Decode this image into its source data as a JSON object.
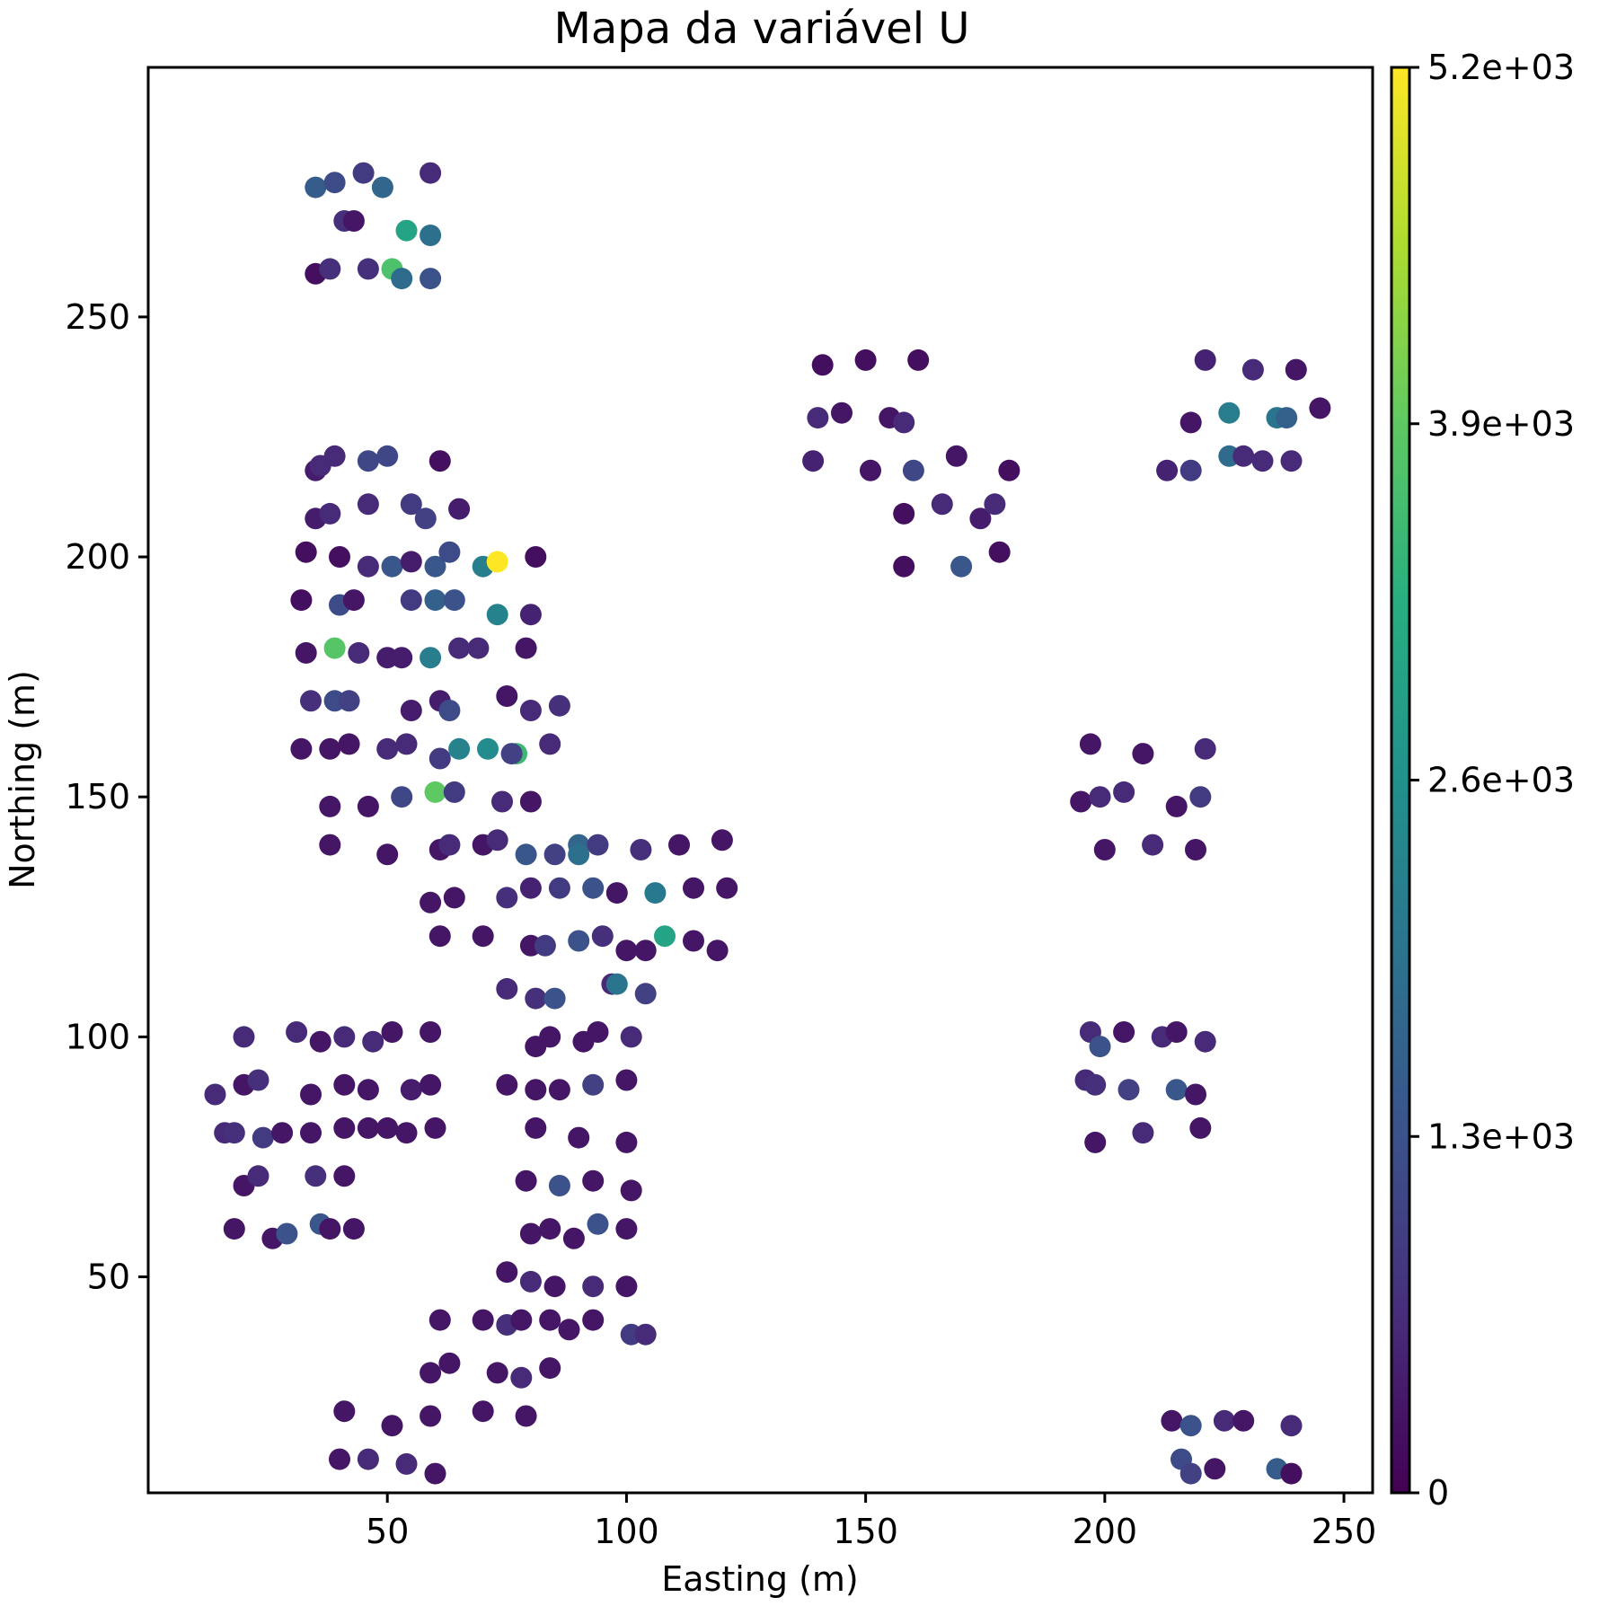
{
  "chart_data": {
    "type": "scatter",
    "title": "Mapa da variável U",
    "xlabel": "Easting (m)",
    "ylabel": "Northing (m)",
    "xlim": [
      0,
      256
    ],
    "ylim": [
      5,
      302
    ],
    "xticks": [
      50,
      100,
      150,
      200,
      250
    ],
    "yticks": [
      50,
      100,
      150,
      200,
      250
    ],
    "grid": false,
    "colorbar": {
      "colormap": "viridis",
      "range": [
        0,
        5200
      ],
      "ticks": [
        0,
        1300,
        2600,
        3900,
        5200
      ],
      "tick_labels": [
        "0",
        "1.3e+03",
        "2.6e+03",
        "3.9e+03",
        "5.2e+03"
      ]
    },
    "points": [
      [
        35,
        277,
        1500
      ],
      [
        39,
        278,
        1200
      ],
      [
        45,
        280,
        900
      ],
      [
        49,
        277,
        1700
      ],
      [
        59,
        280,
        600
      ],
      [
        41,
        270,
        700
      ],
      [
        43,
        270,
        300
      ],
      [
        54,
        268,
        3000
      ],
      [
        59,
        267,
        1900
      ],
      [
        35,
        259,
        200
      ],
      [
        38,
        260,
        700
      ],
      [
        46,
        260,
        700
      ],
      [
        51,
        260,
        3700
      ],
      [
        53,
        258,
        1800
      ],
      [
        59,
        258,
        1300
      ],
      [
        141,
        240,
        200
      ],
      [
        150,
        241,
        200
      ],
      [
        161,
        241,
        200
      ],
      [
        140,
        229,
        600
      ],
      [
        145,
        230,
        300
      ],
      [
        155,
        229,
        300
      ],
      [
        158,
        228,
        600
      ],
      [
        139,
        220,
        500
      ],
      [
        151,
        218,
        300
      ],
      [
        160,
        218,
        1100
      ],
      [
        169,
        221,
        300
      ],
      [
        180,
        218,
        200
      ],
      [
        158,
        209,
        200
      ],
      [
        166,
        211,
        600
      ],
      [
        174,
        208,
        400
      ],
      [
        177,
        211,
        600
      ],
      [
        158,
        198,
        200
      ],
      [
        170,
        198,
        1400
      ],
      [
        178,
        201,
        200
      ],
      [
        221,
        241,
        500
      ],
      [
        231,
        239,
        600
      ],
      [
        240,
        239,
        300
      ],
      [
        245,
        231,
        300
      ],
      [
        218,
        228,
        300
      ],
      [
        226,
        230,
        2200
      ],
      [
        236,
        229,
        2000
      ],
      [
        238,
        229,
        1600
      ],
      [
        213,
        218,
        500
      ],
      [
        218,
        218,
        900
      ],
      [
        226,
        221,
        1800
      ],
      [
        229,
        221,
        600
      ],
      [
        233,
        220,
        600
      ],
      [
        239,
        220,
        600
      ],
      [
        35,
        218,
        400
      ],
      [
        36,
        219,
        600
      ],
      [
        39,
        221,
        600
      ],
      [
        46,
        220,
        1100
      ],
      [
        50,
        221,
        1100
      ],
      [
        61,
        220,
        200
      ],
      [
        35,
        208,
        400
      ],
      [
        38,
        209,
        600
      ],
      [
        46,
        211,
        600
      ],
      [
        55,
        211,
        900
      ],
      [
        58,
        208,
        1000
      ],
      [
        65,
        210,
        400
      ],
      [
        33,
        201,
        200
      ],
      [
        40,
        200,
        200
      ],
      [
        46,
        198,
        600
      ],
      [
        51,
        198,
        1400
      ],
      [
        55,
        199,
        400
      ],
      [
        60,
        198,
        1400
      ],
      [
        63,
        201,
        1200
      ],
      [
        70,
        198,
        2200
      ],
      [
        73,
        199,
        5200
      ],
      [
        81,
        200,
        200
      ],
      [
        32,
        191,
        200
      ],
      [
        40,
        190,
        1200
      ],
      [
        43,
        191,
        300
      ],
      [
        55,
        191,
        900
      ],
      [
        60,
        191,
        1600
      ],
      [
        64,
        191,
        1300
      ],
      [
        73,
        188,
        2300
      ],
      [
        80,
        188,
        500
      ],
      [
        33,
        180,
        300
      ],
      [
        39,
        181,
        3800
      ],
      [
        44,
        180,
        600
      ],
      [
        50,
        179,
        400
      ],
      [
        53,
        179,
        400
      ],
      [
        59,
        179,
        2200
      ],
      [
        65,
        181,
        600
      ],
      [
        69,
        181,
        600
      ],
      [
        79,
        181,
        300
      ],
      [
        34,
        170,
        700
      ],
      [
        39,
        170,
        1200
      ],
      [
        42,
        170,
        1000
      ],
      [
        55,
        168,
        400
      ],
      [
        61,
        170,
        400
      ],
      [
        63,
        168,
        1200
      ],
      [
        75,
        171,
        300
      ],
      [
        80,
        168,
        600
      ],
      [
        86,
        169,
        700
      ],
      [
        32,
        160,
        300
      ],
      [
        38,
        160,
        300
      ],
      [
        42,
        161,
        300
      ],
      [
        50,
        160,
        600
      ],
      [
        54,
        161,
        600
      ],
      [
        61,
        158,
        900
      ],
      [
        65,
        160,
        2300
      ],
      [
        71,
        160,
        2500
      ],
      [
        77,
        159,
        3500
      ],
      [
        76,
        159,
        1000
      ],
      [
        84,
        161,
        600
      ],
      [
        38,
        148,
        300
      ],
      [
        46,
        148,
        300
      ],
      [
        53,
        150,
        1100
      ],
      [
        60,
        151,
        3900
      ],
      [
        64,
        151,
        900
      ],
      [
        74,
        149,
        600
      ],
      [
        80,
        149,
        300
      ],
      [
        38,
        140,
        300
      ],
      [
        50,
        138,
        300
      ],
      [
        61,
        139,
        300
      ],
      [
        63,
        140,
        600
      ],
      [
        70,
        140,
        300
      ],
      [
        73,
        141,
        600
      ],
      [
        79,
        138,
        1400
      ],
      [
        85,
        138,
        1000
      ],
      [
        90,
        140,
        1700
      ],
      [
        90,
        138,
        1900
      ],
      [
        94,
        140,
        900
      ],
      [
        103,
        139,
        700
      ],
      [
        111,
        140,
        300
      ],
      [
        120,
        141,
        300
      ],
      [
        59,
        128,
        300
      ],
      [
        64,
        129,
        300
      ],
      [
        75,
        129,
        700
      ],
      [
        80,
        131,
        500
      ],
      [
        86,
        131,
        900
      ],
      [
        93,
        131,
        1300
      ],
      [
        98,
        130,
        300
      ],
      [
        106,
        130,
        2100
      ],
      [
        114,
        131,
        300
      ],
      [
        121,
        131,
        300
      ],
      [
        61,
        121,
        300
      ],
      [
        70,
        121,
        300
      ],
      [
        80,
        119,
        300
      ],
      [
        83,
        119,
        900
      ],
      [
        90,
        120,
        1300
      ],
      [
        95,
        121,
        700
      ],
      [
        100,
        118,
        300
      ],
      [
        104,
        118,
        300
      ],
      [
        108,
        121,
        3000
      ],
      [
        114,
        120,
        300
      ],
      [
        119,
        118,
        300
      ],
      [
        75,
        110,
        600
      ],
      [
        81,
        108,
        700
      ],
      [
        85,
        108,
        1300
      ],
      [
        97,
        111,
        600
      ],
      [
        98,
        111,
        2000
      ],
      [
        104,
        109,
        1000
      ],
      [
        20,
        100,
        600
      ],
      [
        31,
        101,
        600
      ],
      [
        36,
        99,
        300
      ],
      [
        41,
        100,
        600
      ],
      [
        47,
        99,
        600
      ],
      [
        51,
        101,
        300
      ],
      [
        59,
        101,
        300
      ],
      [
        81,
        98,
        300
      ],
      [
        84,
        100,
        300
      ],
      [
        91,
        99,
        300
      ],
      [
        94,
        101,
        300
      ],
      [
        101,
        100,
        600
      ],
      [
        14,
        88,
        600
      ],
      [
        20,
        90,
        300
      ],
      [
        23,
        91,
        700
      ],
      [
        34,
        88,
        300
      ],
      [
        41,
        90,
        300
      ],
      [
        46,
        89,
        300
      ],
      [
        55,
        89,
        400
      ],
      [
        59,
        90,
        300
      ],
      [
        75,
        90,
        300
      ],
      [
        81,
        89,
        300
      ],
      [
        86,
        89,
        300
      ],
      [
        93,
        90,
        1000
      ],
      [
        100,
        91,
        300
      ],
      [
        16,
        80,
        600
      ],
      [
        18,
        80,
        700
      ],
      [
        24,
        79,
        900
      ],
      [
        28,
        80,
        300
      ],
      [
        34,
        80,
        300
      ],
      [
        41,
        81,
        300
      ],
      [
        46,
        81,
        300
      ],
      [
        50,
        81,
        300
      ],
      [
        54,
        80,
        300
      ],
      [
        60,
        81,
        300
      ],
      [
        81,
        81,
        300
      ],
      [
        90,
        79,
        300
      ],
      [
        100,
        78,
        300
      ],
      [
        20,
        69,
        300
      ],
      [
        23,
        71,
        600
      ],
      [
        35,
        71,
        700
      ],
      [
        41,
        71,
        300
      ],
      [
        79,
        70,
        300
      ],
      [
        86,
        69,
        1300
      ],
      [
        93,
        70,
        300
      ],
      [
        101,
        68,
        300
      ],
      [
        18,
        60,
        300
      ],
      [
        26,
        58,
        300
      ],
      [
        29,
        59,
        1300
      ],
      [
        36,
        61,
        1400
      ],
      [
        38,
        60,
        300
      ],
      [
        43,
        60,
        300
      ],
      [
        80,
        59,
        300
      ],
      [
        84,
        60,
        300
      ],
      [
        89,
        58,
        300
      ],
      [
        94,
        61,
        1300
      ],
      [
        100,
        60,
        300
      ],
      [
        75,
        51,
        300
      ],
      [
        80,
        49,
        600
      ],
      [
        85,
        48,
        300
      ],
      [
        93,
        48,
        600
      ],
      [
        100,
        48,
        300
      ],
      [
        61,
        41,
        300
      ],
      [
        70,
        41,
        300
      ],
      [
        75,
        40,
        700
      ],
      [
        78,
        41,
        300
      ],
      [
        84,
        41,
        300
      ],
      [
        88,
        39,
        300
      ],
      [
        93,
        41,
        300
      ],
      [
        101,
        38,
        900
      ],
      [
        104,
        38,
        600
      ],
      [
        59,
        30,
        300
      ],
      [
        63,
        32,
        300
      ],
      [
        73,
        30,
        300
      ],
      [
        78,
        29,
        600
      ],
      [
        84,
        31,
        300
      ],
      [
        41,
        22,
        300
      ],
      [
        51,
        19,
        300
      ],
      [
        59,
        21,
        300
      ],
      [
        70,
        22,
        300
      ],
      [
        79,
        21,
        300
      ],
      [
        40,
        12,
        300
      ],
      [
        46,
        12,
        600
      ],
      [
        54,
        11,
        600
      ],
      [
        60,
        9,
        300
      ],
      [
        197,
        161,
        300
      ],
      [
        208,
        159,
        300
      ],
      [
        221,
        160,
        600
      ],
      [
        195,
        149,
        300
      ],
      [
        199,
        150,
        600
      ],
      [
        204,
        151,
        600
      ],
      [
        215,
        148,
        300
      ],
      [
        220,
        150,
        900
      ],
      [
        200,
        139,
        300
      ],
      [
        210,
        140,
        600
      ],
      [
        219,
        139,
        300
      ],
      [
        197,
        101,
        600
      ],
      [
        199,
        98,
        1300
      ],
      [
        204,
        101,
        300
      ],
      [
        212,
        100,
        600
      ],
      [
        215,
        101,
        300
      ],
      [
        221,
        99,
        600
      ],
      [
        196,
        91,
        600
      ],
      [
        198,
        90,
        700
      ],
      [
        205,
        89,
        1000
      ],
      [
        215,
        89,
        1400
      ],
      [
        219,
        88,
        300
      ],
      [
        198,
        78,
        300
      ],
      [
        208,
        80,
        600
      ],
      [
        220,
        81,
        300
      ],
      [
        214,
        20,
        300
      ],
      [
        218,
        19,
        1300
      ],
      [
        225,
        20,
        600
      ],
      [
        229,
        20,
        300
      ],
      [
        239,
        19,
        600
      ],
      [
        216,
        12,
        1200
      ],
      [
        218,
        9,
        1000
      ],
      [
        223,
        10,
        300
      ],
      [
        236,
        10,
        1500
      ],
      [
        239,
        9,
        200
      ]
    ]
  }
}
